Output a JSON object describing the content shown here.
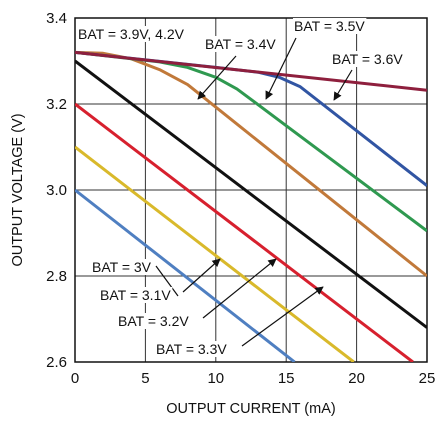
{
  "chart_data": {
    "type": "line",
    "xlabel": "OUTPUT CURRENT (mA)",
    "ylabel": "OUTPUT VOLTAGE (V)",
    "xlim": [
      0,
      25
    ],
    "ylim": [
      2.6,
      3.4
    ],
    "xticks": [
      0,
      5,
      10,
      15,
      20,
      25
    ],
    "yticks": [
      2.6,
      2.8,
      3.0,
      3.2,
      3.4
    ],
    "xtick_labels": [
      "0",
      "5",
      "10",
      "15",
      "20",
      "25"
    ],
    "ytick_labels": [
      "2.6",
      "2.8",
      "3.0",
      "3.2",
      "3.4"
    ],
    "grid": true,
    "series": [
      {
        "name": "BAT = 3V",
        "color": "#4f7fc1",
        "x": [
          0,
          15.6
        ],
        "y": [
          3.0,
          2.6
        ]
      },
      {
        "name": "BAT = 3.1V",
        "color": "#d9b92b",
        "x": [
          0,
          19.8
        ],
        "y": [
          3.1,
          2.6
        ]
      },
      {
        "name": "BAT = 3.2V",
        "color": "#d7202e",
        "x": [
          0,
          24.0
        ],
        "y": [
          3.2,
          2.6
        ]
      },
      {
        "name": "BAT = 3.3V",
        "color": "#111111",
        "x": [
          0,
          25
        ],
        "y": [
          3.3,
          2.68
        ]
      },
      {
        "name": "BAT = 3.4V",
        "color": "#c1793a",
        "x": [
          0,
          2.0,
          4.0,
          6.0,
          8.0,
          25
        ],
        "y": [
          3.32,
          3.318,
          3.305,
          3.28,
          3.245,
          2.8
        ]
      },
      {
        "name": "BAT = 3.5V",
        "color": "#2f9950",
        "x": [
          0,
          6.0,
          8.0,
          10.0,
          11.5,
          25
        ],
        "y": [
          3.32,
          3.298,
          3.285,
          3.262,
          3.235,
          2.905
        ]
      },
      {
        "name": "BAT = 3.6V",
        "color": "#3155a3",
        "x": [
          0,
          10.0,
          13.0,
          14.5,
          16.0,
          25
        ],
        "y": [
          3.32,
          3.285,
          3.274,
          3.262,
          3.24,
          3.01
        ]
      },
      {
        "name": "BAT = 3.9V, 4.2V",
        "color": "#8e1f3d",
        "x": [
          0,
          25
        ],
        "y": [
          3.32,
          3.232
        ]
      }
    ],
    "annotations": [
      {
        "text": "BAT = 3.9V, 4.2V",
        "series": "BAT = 3.9V, 4.2V"
      },
      {
        "text": "BAT = 3.5V",
        "series": "BAT = 3.5V"
      },
      {
        "text": "BAT = 3.4V",
        "series": "BAT = 3.4V"
      },
      {
        "text": "BAT = 3.6V",
        "series": "BAT = 3.6V"
      },
      {
        "text": "BAT = 3V",
        "series": "BAT = 3V"
      },
      {
        "text": "BAT = 3.1V",
        "series": "BAT = 3.1V"
      },
      {
        "text": "BAT = 3.2V",
        "series": "BAT = 3.2V"
      },
      {
        "text": "BAT = 3.3V",
        "series": "BAT = 3.3V"
      }
    ]
  }
}
